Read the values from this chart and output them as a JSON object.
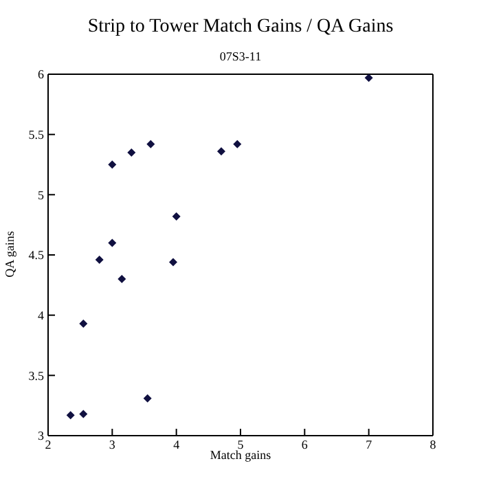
{
  "chart_data": {
    "type": "scatter",
    "title": "Strip to Tower Match Gains / QA Gains",
    "subtitle": "07S3-11",
    "xlabel": "Match gains",
    "ylabel": "QA gains",
    "x": [
      2.35,
      2.55,
      2.55,
      2.8,
      3.0,
      3.0,
      3.15,
      3.3,
      3.55,
      3.6,
      3.95,
      4.0,
      4.7,
      4.95,
      7.0
    ],
    "series": [
      {
        "color": "#101040",
        "values": [
          3.17,
          3.18,
          3.93,
          4.46,
          4.6,
          5.25,
          4.3,
          5.35,
          3.31,
          5.42,
          4.44,
          4.82,
          5.36,
          5.42,
          5.97
        ]
      }
    ],
    "xlim": [
      2,
      8
    ],
    "xticks": [
      2,
      3,
      4,
      5,
      6,
      7,
      8
    ],
    "ylim": [
      3,
      6
    ],
    "yticks": [
      3,
      3.5,
      4,
      4.5,
      5,
      5.5,
      6
    ],
    "marker": "diamond"
  }
}
